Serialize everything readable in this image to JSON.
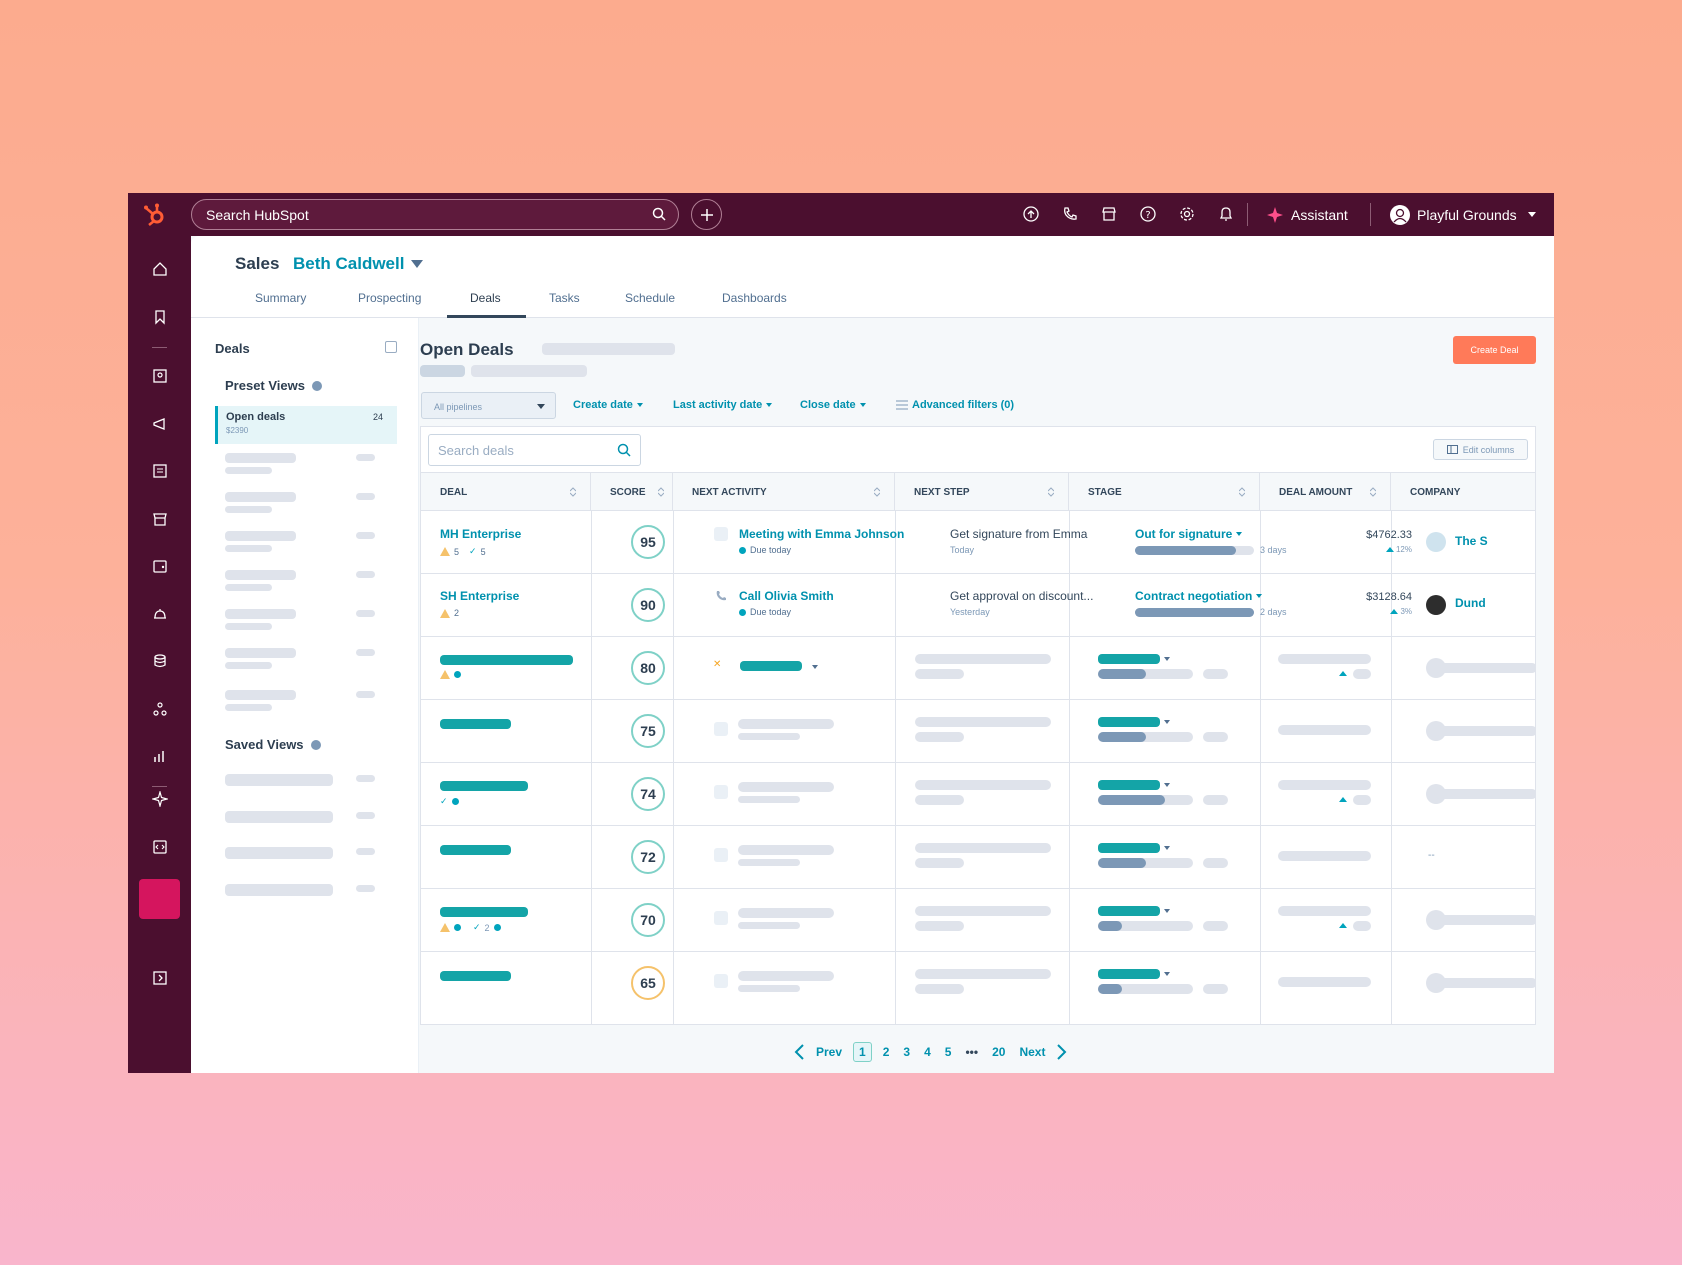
{
  "topbar": {
    "search_placeholder": "Search HubSpot",
    "assistant_label": "Assistant",
    "account_name": "Playful Grounds",
    "brand_color": "#4b0f2f"
  },
  "header": {
    "section": "Sales",
    "user": "Beth Caldwell",
    "tabs": [
      "Summary",
      "Prospecting",
      "Deals",
      "Tasks",
      "Schedule",
      "Dashboards"
    ],
    "active_tab": "Deals"
  },
  "left_panel": {
    "title": "Deals",
    "preset_views_label": "Preset Views",
    "active_view": {
      "label": "Open deals",
      "amount": "$2390",
      "count": "24"
    },
    "saved_views_label": "Saved Views"
  },
  "content": {
    "title": "Open Deals",
    "create_button": "Create Deal",
    "pipeline_select": "All pipelines",
    "filters": [
      "Create date",
      "Last activity date",
      "Close date"
    ],
    "advanced_filters": "Advanced filters (0)",
    "search_placeholder": "Search deals",
    "edit_columns": "Edit columns",
    "columns": [
      "DEAL",
      "SCORE",
      "NEXT ACTIVITY",
      "NEXT STEP",
      "STAGE",
      "DEAL AMOUNT",
      "COMPANY"
    ],
    "rows": [
      {
        "deal": "MH Enterprise",
        "warn": "5",
        "check": "5",
        "score": "95",
        "activity": "Meeting with Emma Johnson",
        "activity_due": "Due today",
        "next_step": "Get signature from Emma",
        "next_step_when": "Today",
        "stage": "Out for signature",
        "stage_days": "3 days",
        "stage_progress": 0.85,
        "amount": "$4762.33",
        "amount_change": "12%",
        "company": "The S"
      },
      {
        "deal": "SH Enterprise",
        "warn": "2",
        "score": "90",
        "activity": "Call Olivia Smith",
        "activity_due": "Due today",
        "next_step": "Get approval on discount...",
        "next_step_when": "Yesterday",
        "stage": "Contract negotiation",
        "stage_days": "2 days",
        "stage_progress": 1.0,
        "amount": "$3128.64",
        "amount_change": "3%",
        "company": "Dund"
      },
      {
        "score": "80",
        "stage_progress": 0.5
      },
      {
        "score": "75",
        "stage_progress": 0.5
      },
      {
        "score": "74",
        "stage_progress": 0.7
      },
      {
        "score": "72",
        "stage_progress": 0.5
      },
      {
        "score": "70",
        "stage_progress": 0.25
      },
      {
        "score": "65",
        "stage_progress": 0.25
      }
    ],
    "company_placeholder": "--",
    "pager": {
      "prev": "Prev",
      "pages": [
        "1",
        "2",
        "3",
        "4",
        "5"
      ],
      "ellipsis": "•••",
      "last": "20",
      "next": "Next",
      "current": "1"
    }
  }
}
